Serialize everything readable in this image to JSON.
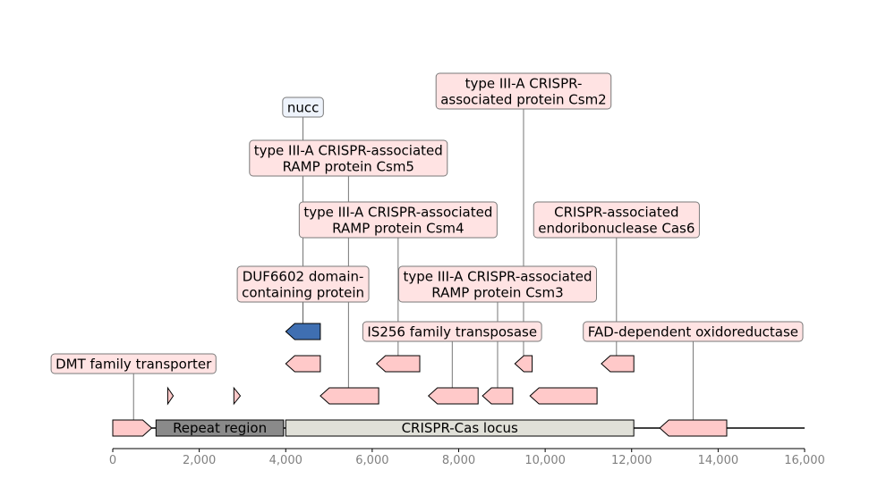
{
  "axis": {
    "min": 0,
    "max": 16000,
    "ticks": [
      {
        "value": 0,
        "label": "0"
      },
      {
        "value": 2000,
        "label": "2,000"
      },
      {
        "value": 4000,
        "label": "4,000"
      },
      {
        "value": 6000,
        "label": "6,000"
      },
      {
        "value": 8000,
        "label": "8,000"
      },
      {
        "value": 10000,
        "label": "10,000"
      },
      {
        "value": 12000,
        "label": "12,000"
      },
      {
        "value": 14000,
        "label": "14,000"
      },
      {
        "value": 16000,
        "label": "16,000"
      }
    ]
  },
  "colors": {
    "gene_fill": "#ffc9c9",
    "highlight_fill": "#3f6fb2",
    "repeat_fill": "#8a8a8a",
    "locus_fill": "#e0e0d8",
    "label_bg": "#ffe3e3",
    "label_bg_nucc": "#eef3fb",
    "tick_text": "#808080"
  },
  "regions": [
    {
      "name": "Repeat region",
      "start": 1000,
      "end": 3950,
      "color": "#8a8a8a"
    },
    {
      "name": "CRISPR-Cas locus",
      "start": 4000,
      "end": 12050,
      "color": "#e0e0d8"
    }
  ],
  "features": [
    {
      "start": 0,
      "end": 900,
      "strand": 1,
      "track": 0,
      "highlight": false
    },
    {
      "start": 12650,
      "end": 14200,
      "strand": -1,
      "track": 0,
      "highlight": false
    },
    {
      "start": 1270,
      "end": 1400,
      "strand": 1,
      "track": 1,
      "highlight": false
    },
    {
      "start": 2800,
      "end": 2950,
      "strand": 1,
      "track": 1,
      "highlight": false
    },
    {
      "start": 4800,
      "end": 6150,
      "strand": -1,
      "track": 1,
      "highlight": false
    },
    {
      "start": 7300,
      "end": 8450,
      "strand": -1,
      "track": 1,
      "highlight": false
    },
    {
      "start": 8550,
      "end": 9250,
      "strand": -1,
      "track": 1,
      "highlight": false
    },
    {
      "start": 9650,
      "end": 11200,
      "strand": -1,
      "track": 1,
      "highlight": false
    },
    {
      "start": 4000,
      "end": 4800,
      "strand": -1,
      "track": 2,
      "highlight": false
    },
    {
      "start": 6100,
      "end": 7100,
      "strand": -1,
      "track": 2,
      "highlight": false
    },
    {
      "start": 9300,
      "end": 9700,
      "strand": -1,
      "track": 2,
      "highlight": false
    },
    {
      "start": 11300,
      "end": 12050,
      "strand": -1,
      "track": 2,
      "highlight": false
    },
    {
      "start": 4000,
      "end": 4800,
      "strand": -1,
      "track": 3,
      "highlight": true
    }
  ],
  "labels": [
    {
      "lines": [
        "DMT family transporter"
      ],
      "pos": 480,
      "level": 0,
      "variant": "gene"
    },
    {
      "lines": [
        "IS256 family transposase"
      ],
      "pos": 7850,
      "level": 1,
      "variant": "gene"
    },
    {
      "lines": [
        "FAD-dependent oxidoreductase"
      ],
      "pos": 13420,
      "level": 1,
      "variant": "gene"
    },
    {
      "lines": [
        "DUF6602 domain-",
        "containing protein"
      ],
      "pos": 4400,
      "level": 2,
      "variant": "gene"
    },
    {
      "lines": [
        "type III-A CRISPR-associated",
        "RAMP protein Csm3"
      ],
      "pos": 8900,
      "level": 2,
      "variant": "gene"
    },
    {
      "lines": [
        "type III-A CRISPR-associated",
        "RAMP protein Csm4"
      ],
      "pos": 6600,
      "level": 3,
      "variant": "gene"
    },
    {
      "lines": [
        "CRISPR-associated",
        "endoribonuclease Cas6"
      ],
      "pos": 11650,
      "level": 3,
      "variant": "gene"
    },
    {
      "lines": [
        "type III-A CRISPR-associated",
        "RAMP protein Csm5"
      ],
      "pos": 5450,
      "level": 4,
      "variant": "gene"
    },
    {
      "lines": [
        "nucc"
      ],
      "pos": 4400,
      "level": 5,
      "variant": "nucc"
    },
    {
      "lines": [
        "type III-A CRISPR-",
        "associated protein Csm2"
      ],
      "pos": 9500,
      "level": 6,
      "variant": "gene"
    }
  ]
}
